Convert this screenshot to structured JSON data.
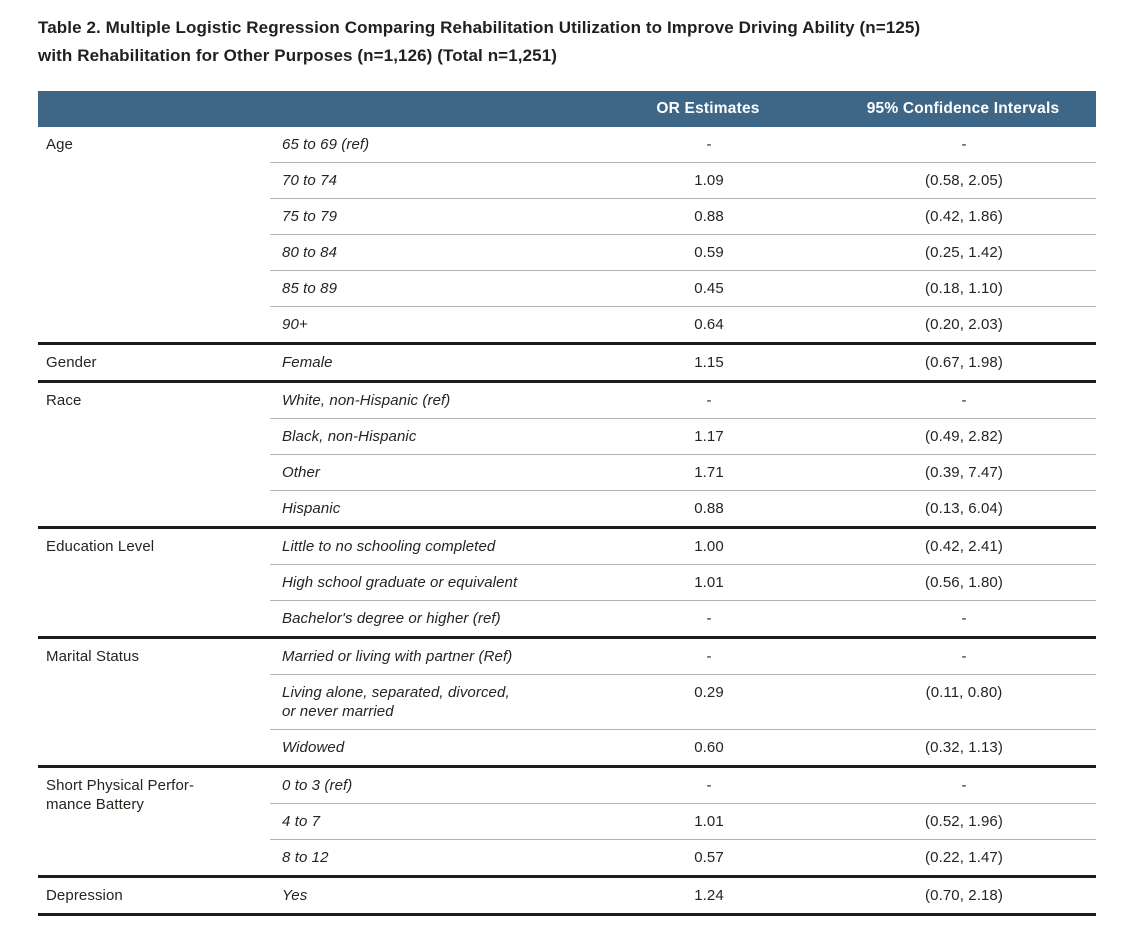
{
  "title": "Table 2. Multiple Logistic Regression Comparing Rehabilitation Utilization to Improve Driving Ability (n=125)\nwith Rehabilitation for Other Purposes (n=1,126) (Total n=1,251)",
  "colors": {
    "header_bg": "#3e6787",
    "header_text": "#ffffff",
    "body_text": "#27241f",
    "row_divider": "#b3b3b3",
    "group_divider": "#1c1c1c"
  },
  "table": {
    "column_headers": {
      "category": "",
      "subcategory": "",
      "or": "OR Estimates",
      "ci": "95% Confidence Intervals"
    },
    "groups": [
      {
        "category": "Age",
        "rows": [
          {
            "label": "65 to 69 (ref)",
            "or": "-",
            "ci": "-"
          },
          {
            "label": "70 to 74",
            "or": "1.09",
            "ci": "(0.58, 2.05)"
          },
          {
            "label": "75 to 79",
            "or": "0.88",
            "ci": "(0.42, 1.86)"
          },
          {
            "label": "80 to 84",
            "or": "0.59",
            "ci": "(0.25, 1.42)"
          },
          {
            "label": "85 to 89",
            "or": "0.45",
            "ci": "(0.18, 1.10)"
          },
          {
            "label": "90+",
            "or": "0.64",
            "ci": "(0.20, 2.03)"
          }
        ]
      },
      {
        "category": "Gender",
        "rows": [
          {
            "label": "Female",
            "or": "1.15",
            "ci": "(0.67, 1.98)"
          }
        ]
      },
      {
        "category": "Race",
        "rows": [
          {
            "label": "White, non-Hispanic (ref)",
            "or": "-",
            "ci": "-"
          },
          {
            "label": "Black, non-Hispanic",
            "or": "1.17",
            "ci": "(0.49, 2.82)"
          },
          {
            "label": "Other",
            "or": "1.71",
            "ci": "(0.39, 7.47)"
          },
          {
            "label": "Hispanic",
            "or": "0.88",
            "ci": "(0.13, 6.04)"
          }
        ]
      },
      {
        "category": "Education Level",
        "rows": [
          {
            "label": "Little to no schooling completed",
            "or": "1.00",
            "ci": "(0.42, 2.41)"
          },
          {
            "label": "High school graduate or equivalent",
            "or": "1.01",
            "ci": "(0.56, 1.80)"
          },
          {
            "label": "Bachelor's degree or higher (ref)",
            "or": "-",
            "ci": "-"
          }
        ]
      },
      {
        "category": "Marital Status",
        "rows": [
          {
            "label": "Married or living with partner (Ref)",
            "or": "-",
            "ci": "-"
          },
          {
            "label": "Living alone, separated, divorced,\nor never married",
            "or": "0.29",
            "ci": "(0.11, 0.80)"
          },
          {
            "label": "Widowed",
            "or": "0.60",
            "ci": "(0.32, 1.13)"
          }
        ]
      },
      {
        "category": "Short Physical Perfor-\nmance Battery",
        "rows": [
          {
            "label": "0 to 3 (ref)",
            "or": "-",
            "ci": "-"
          },
          {
            "label": "4 to 7",
            "or": "1.01",
            "ci": "(0.52, 1.96)"
          },
          {
            "label": "8 to 12",
            "or": "0.57",
            "ci": "(0.22, 1.47)"
          }
        ]
      },
      {
        "category": "Depression",
        "rows": [
          {
            "label": "Yes",
            "or": "1.24",
            "ci": "(0.70, 2.18)"
          }
        ]
      }
    ]
  }
}
